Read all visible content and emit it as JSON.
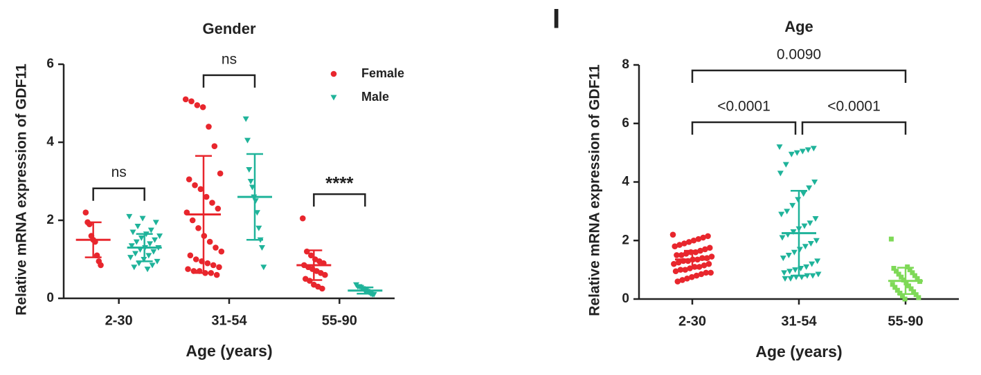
{
  "chart_data": [
    {
      "type": "dotplot",
      "title": "Gender",
      "x_label": "Age (years)",
      "y_label": "Relative mRNA expression of GDF11",
      "categories": [
        "2-30",
        "31-54",
        "55-90"
      ],
      "ylim": [
        0,
        6
      ],
      "yticks": [
        0,
        2,
        4,
        6
      ],
      "legend": "top-right",
      "series": [
        {
          "name": "Female",
          "color": "#e8262d",
          "marker": "circle",
          "points": [
            [
              2.2,
              1.95,
              1.9,
              1.6,
              1.5,
              1.45,
              1.1,
              0.95,
              0.85
            ],
            [
              5.1,
              5.05,
              4.95,
              4.9,
              4.4,
              3.9,
              3.2,
              3.05,
              2.9,
              2.8,
              2.6,
              2.45,
              2.3,
              2.2,
              2.0,
              1.8,
              1.6,
              1.45,
              1.3,
              1.2,
              1.1,
              1.0,
              0.95,
              0.9,
              0.85,
              0.8,
              0.75,
              0.7,
              0.7,
              0.65,
              0.65,
              0.6
            ],
            [
              2.05,
              1.2,
              1.1,
              1.0,
              0.95,
              0.9,
              0.85,
              0.8,
              0.75,
              0.7,
              0.65,
              0.6,
              0.5,
              0.45,
              0.35,
              0.3,
              0.25
            ]
          ],
          "means": [
            1.5,
            2.15,
            0.85
          ],
          "sd": [
            0.45,
            1.5,
            0.38
          ]
        },
        {
          "name": "Male",
          "color": "#1fb39a",
          "marker": "triangle-down",
          "points": [
            [
              2.1,
              2.05,
              1.95,
              1.85,
              1.75,
              1.7,
              1.65,
              1.6,
              1.55,
              1.5,
              1.45,
              1.4,
              1.35,
              1.3,
              1.3,
              1.25,
              1.2,
              1.15,
              1.1,
              1.05,
              1.0,
              0.95,
              0.9,
              0.85,
              0.8,
              0.75
            ],
            [
              4.6,
              4.05,
              3.3,
              3.0,
              2.85,
              2.6,
              2.5,
              2.2,
              1.8,
              1.5,
              1.3,
              0.8
            ],
            [
              0.35,
              0.3,
              0.3,
              0.28,
              0.25,
              0.22,
              0.2,
              0.18,
              0.15,
              0.12,
              0.1,
              0.1
            ]
          ],
          "means": [
            1.3,
            2.6,
            0.2
          ],
          "sd": [
            0.35,
            1.1,
            0.08
          ]
        }
      ],
      "comparisons": [
        {
          "category": 0,
          "label": "ns"
        },
        {
          "category": 1,
          "label": "ns"
        },
        {
          "category": 2,
          "label": "****"
        }
      ]
    },
    {
      "type": "dotplot",
      "panel_label": "I",
      "title": "Age",
      "x_label": "Age (years)",
      "y_label": "Relative mRNA expression of GDF11",
      "categories": [
        "2-30",
        "31-54",
        "55-90"
      ],
      "ylim": [
        0,
        8
      ],
      "yticks": [
        0,
        2,
        4,
        6,
        8
      ],
      "series": [
        {
          "colors": [
            "#e8262d",
            "#1fb39a",
            "#7ed957"
          ],
          "markers": [
            "circle",
            "triangle-down",
            "square"
          ],
          "points": [
            [
              2.2,
              2.15,
              2.1,
              2.05,
              2.0,
              1.95,
              1.9,
              1.85,
              1.8,
              1.75,
              1.7,
              1.65,
              1.6,
              1.6,
              1.55,
              1.5,
              1.5,
              1.45,
              1.4,
              1.4,
              1.35,
              1.35,
              1.3,
              1.3,
              1.25,
              1.2,
              1.2,
              1.15,
              1.1,
              1.1,
              1.05,
              1.0,
              1.0,
              0.95,
              0.9,
              0.9,
              0.85,
              0.8,
              0.75,
              0.7,
              0.65,
              0.6
            ],
            [
              5.2,
              5.15,
              5.1,
              5.05,
              5.0,
              4.95,
              4.6,
              4.3,
              4.0,
              3.8,
              3.6,
              3.4,
              3.2,
              3.0,
              2.9,
              2.75,
              2.6,
              2.5,
              2.4,
              2.3,
              2.2,
              2.1,
              2.0,
              1.9,
              1.8,
              1.7,
              1.6,
              1.5,
              1.4,
              1.3,
              1.2,
              1.1,
              1.05,
              1.0,
              0.95,
              0.9,
              0.85,
              0.8,
              0.8,
              0.75,
              0.75,
              0.7,
              0.7
            ],
            [
              2.05,
              1.1,
              1.05,
              1.0,
              0.95,
              0.9,
              0.85,
              0.8,
              0.75,
              0.7,
              0.65,
              0.6,
              0.55,
              0.5,
              0.45,
              0.4,
              0.35,
              0.3,
              0.25,
              0.2,
              0.15,
              0.1,
              0.05,
              0.0
            ]
          ],
          "means": [
            1.35,
            2.25,
            0.62
          ],
          "sd": [
            0.3,
            1.45,
            0.45
          ]
        }
      ],
      "comparisons": [
        {
          "between": [
            0,
            2
          ],
          "label": "0.0090"
        },
        {
          "between": [
            0,
            1
          ],
          "label": "<0.0001"
        },
        {
          "between": [
            1,
            2
          ],
          "label": "<0.0001"
        }
      ]
    }
  ]
}
